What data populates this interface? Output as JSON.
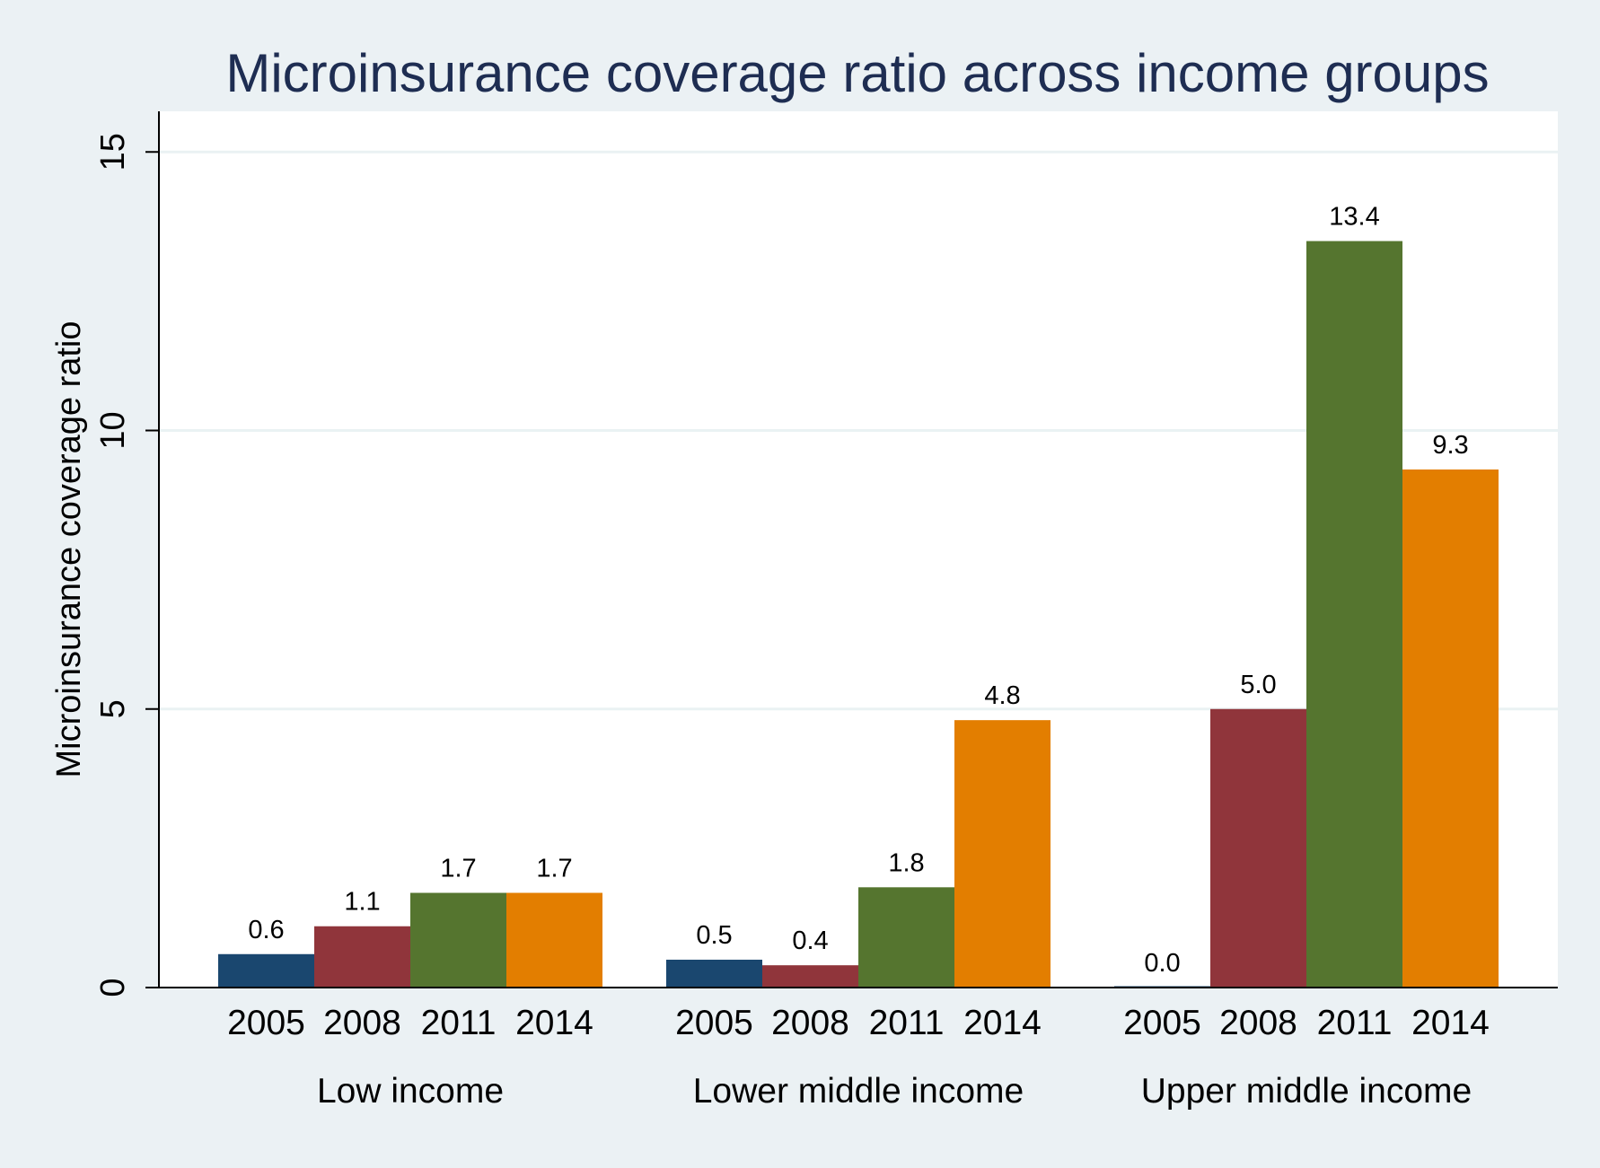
{
  "chart_data": {
    "type": "bar",
    "title": "Microinsurance coverage ratio across income groups",
    "ylabel": "Microinsurance coverage ratio",
    "xlabel": "",
    "ylim": [
      0,
      16
    ],
    "yticks": [
      0,
      5,
      10,
      15
    ],
    "grid": true,
    "groups": [
      "Low income",
      "Lower middle income",
      "Upper middle income"
    ],
    "categories": [
      "2005",
      "2008",
      "2011",
      "2014"
    ],
    "series": [
      {
        "name": "Low income",
        "values": [
          0.6,
          1.1,
          1.7,
          1.7
        ],
        "labels": [
          "0.6",
          "1.1",
          "1.7",
          "1.7"
        ]
      },
      {
        "name": "Lower middle income",
        "values": [
          0.5,
          0.4,
          1.8,
          4.8
        ],
        "labels": [
          "0.5",
          "0.4",
          "1.8",
          "4.8"
        ]
      },
      {
        "name": "Upper middle income",
        "values": [
          0.0,
          5.0,
          13.4,
          9.3
        ],
        "labels": [
          "0.0",
          "5.0",
          "13.4",
          "9.3"
        ]
      }
    ],
    "colors": [
      "#1a476f",
      "#90353b",
      "#55752f",
      "#e37e00"
    ]
  }
}
